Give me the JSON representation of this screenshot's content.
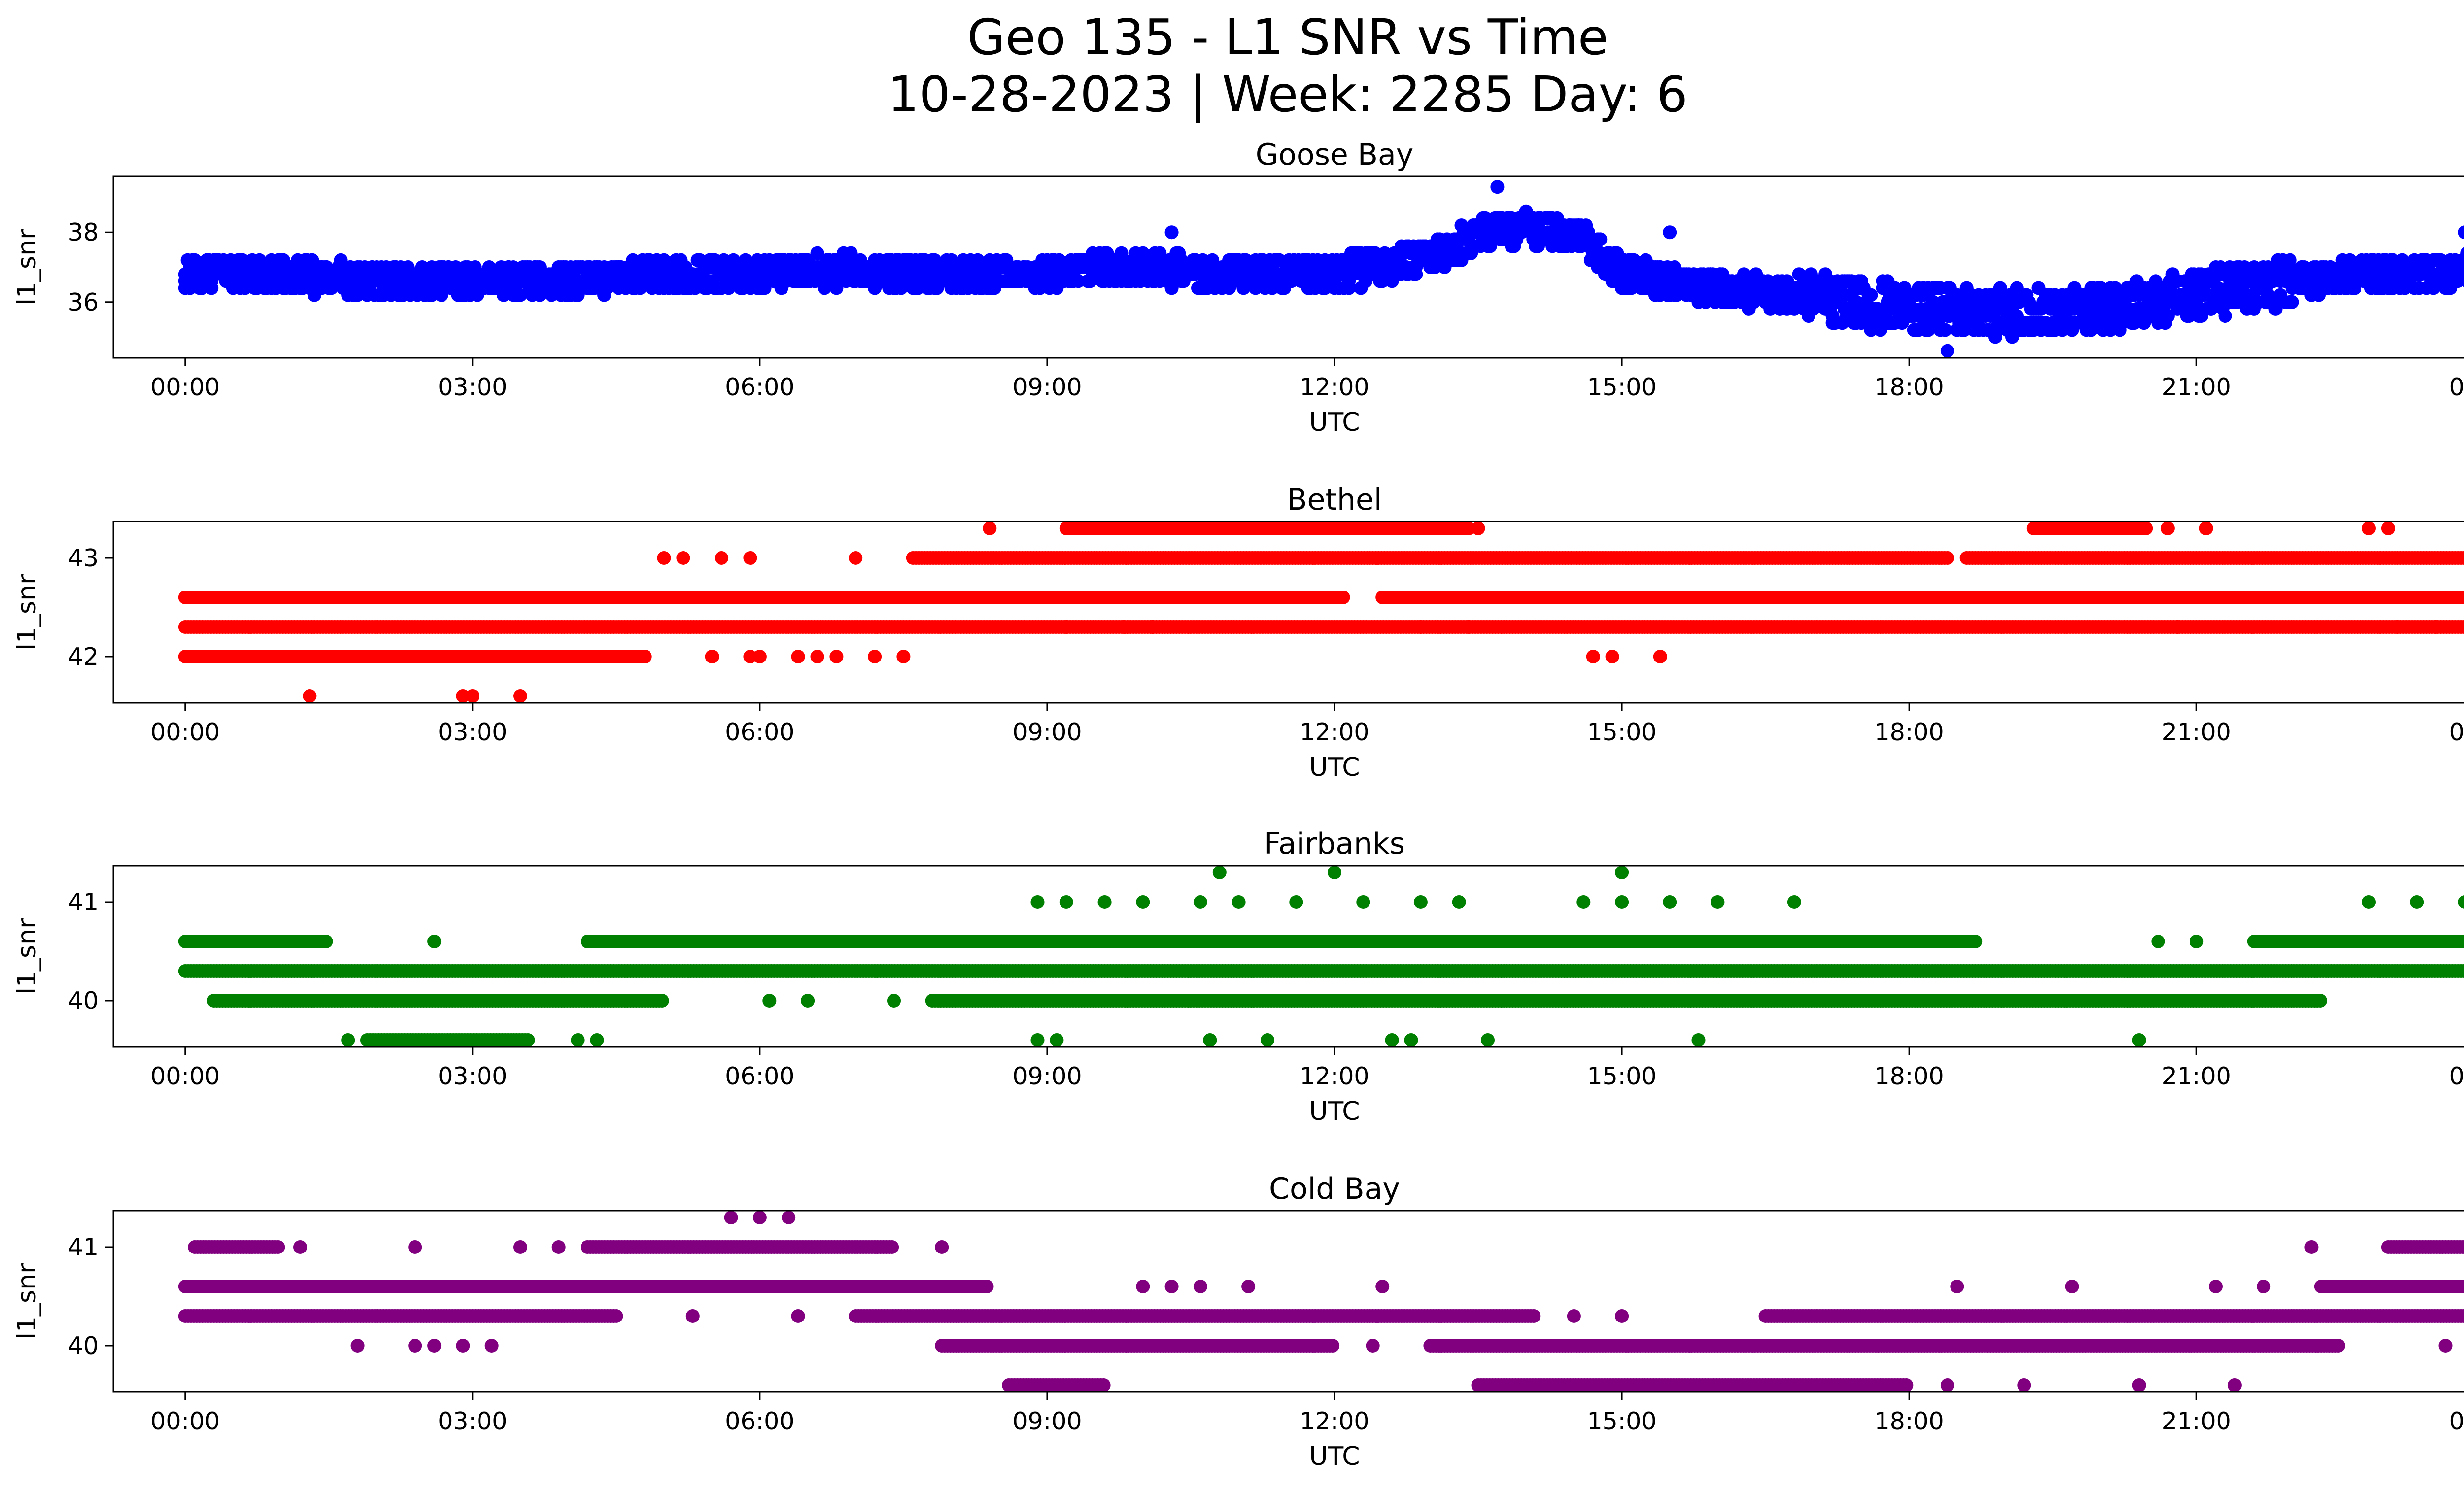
{
  "figure": {
    "title_line1": "Geo 135 - L1 SNR vs Time",
    "title_line2": "10-28-2023 | Week: 2285 Day: 6"
  },
  "chart_data": [
    {
      "type": "scatter",
      "title": "Goose Bay",
      "color": "#0000ff",
      "xlabel": "UTC",
      "ylabel": "l1_snr",
      "xlim": [
        "23:15",
        "24:45"
      ],
      "xticks": [
        "00:00",
        "03:00",
        "06:00",
        "09:00",
        "12:00",
        "15:00",
        "18:00",
        "21:00",
        "00:00"
      ],
      "ylim": [
        34.4,
        39.6
      ],
      "yticks": [
        36,
        38
      ],
      "grid": false,
      "series_trend": [
        [
          0,
          36.8
        ],
        [
          1,
          36.8
        ],
        [
          2,
          36.6
        ],
        [
          3,
          36.6
        ],
        [
          4,
          36.6
        ],
        [
          5,
          36.8
        ],
        [
          6,
          36.8
        ],
        [
          7,
          36.9
        ],
        [
          8,
          36.8
        ],
        [
          9,
          36.8
        ],
        [
          10,
          37.0
        ],
        [
          11,
          36.8
        ],
        [
          12,
          36.8
        ],
        [
          13,
          37.3
        ],
        [
          13.7,
          38.1
        ],
        [
          14.5,
          38.0
        ],
        [
          15,
          36.8
        ],
        [
          16,
          36.4
        ],
        [
          17,
          36.1
        ],
        [
          18,
          35.8
        ],
        [
          19,
          35.7
        ],
        [
          20,
          35.8
        ],
        [
          21,
          36.2
        ],
        [
          22,
          36.6
        ],
        [
          23,
          36.8
        ],
        [
          24,
          36.9
        ]
      ],
      "outliers": [
        [
          13.7,
          39.3
        ],
        [
          18.4,
          34.6
        ],
        [
          10.3,
          38.0
        ],
        [
          23.8,
          38.0
        ],
        [
          15.5,
          38.0
        ]
      ]
    },
    {
      "type": "scatter",
      "title": "Bethel",
      "color": "#ff0000",
      "xlabel": "UTC",
      "ylabel": "l1_snr",
      "xlim": [
        "23:15",
        "24:45"
      ],
      "xticks": [
        "00:00",
        "03:00",
        "06:00",
        "09:00",
        "12:00",
        "15:00",
        "18:00",
        "21:00",
        "00:00"
      ],
      "ylim": [
        41.53,
        43.37
      ],
      "yticks": [
        42,
        43
      ],
      "grid": false,
      "levels": [
        41.6,
        42.0,
        42.3,
        42.6,
        43.0,
        43.3
      ],
      "segments": [
        [
          42.3,
          0,
          24
        ],
        [
          42.6,
          0,
          12.1
        ],
        [
          42.6,
          12.5,
          24
        ],
        [
          42.0,
          0,
          4.8
        ],
        [
          43.0,
          7.6,
          18.4
        ],
        [
          43.0,
          18.6,
          24
        ],
        [
          43.3,
          9.2,
          13.4
        ],
        [
          43.3,
          19.3,
          20.5
        ]
      ],
      "sparse": [
        [
          41.6,
          1.3
        ],
        [
          41.6,
          2.9
        ],
        [
          41.6,
          3.0
        ],
        [
          41.6,
          3.5
        ],
        [
          42.0,
          5.5
        ],
        [
          42.0,
          5.9
        ],
        [
          42.0,
          6.0
        ],
        [
          42.0,
          6.4
        ],
        [
          42.0,
          6.6
        ],
        [
          42.0,
          6.8
        ],
        [
          42.0,
          7.2
        ],
        [
          42.0,
          7.5
        ],
        [
          42.0,
          14.7
        ],
        [
          42.0,
          14.9
        ],
        [
          42.0,
          15.4
        ],
        [
          43.0,
          5.0
        ],
        [
          43.0,
          5.2
        ],
        [
          43.0,
          5.6
        ],
        [
          43.0,
          5.9
        ],
        [
          43.0,
          7.0
        ],
        [
          43.3,
          8.4
        ],
        [
          43.3,
          13.5
        ],
        [
          43.3,
          20.7
        ],
        [
          43.3,
          21.1
        ],
        [
          43.3,
          22.8
        ],
        [
          43.3,
          23.0
        ],
        [
          42.3,
          9.2
        ],
        [
          42.3,
          9.8
        ],
        [
          42.3,
          10.1
        ],
        [
          42.3,
          12.9
        ],
        [
          42.3,
          13.4
        ],
        [
          42.3,
          20.8
        ],
        [
          42.3,
          23.1
        ],
        [
          42.3,
          23.5
        ]
      ]
    },
    {
      "type": "scatter",
      "title": "Fairbanks",
      "color": "#008000",
      "xlabel": "UTC",
      "ylabel": "l1_snr",
      "xlim": [
        "23:15",
        "24:45"
      ],
      "xticks": [
        "00:00",
        "03:00",
        "06:00",
        "09:00",
        "12:00",
        "15:00",
        "18:00",
        "21:00",
        "00:00"
      ],
      "ylim": [
        39.53,
        41.37
      ],
      "yticks": [
        40,
        41
      ],
      "grid": false,
      "levels": [
        39.6,
        40.0,
        40.3,
        40.6,
        41.0,
        41.3
      ],
      "segments": [
        [
          40.3,
          0,
          24
        ],
        [
          40.6,
          0,
          1.5
        ],
        [
          40.6,
          4.2,
          18.7
        ],
        [
          40.6,
          21.6,
          24
        ],
        [
          40.0,
          0.3,
          5.0
        ],
        [
          40.0,
          7.8,
          22.3
        ],
        [
          39.6,
          1.9,
          3.6
        ]
      ],
      "sparse": [
        [
          39.6,
          1.7
        ],
        [
          39.6,
          4.1
        ],
        [
          39.6,
          4.3
        ],
        [
          39.6,
          8.9
        ],
        [
          39.6,
          9.1
        ],
        [
          39.6,
          10.7
        ],
        [
          39.6,
          11.3
        ],
        [
          39.6,
          12.6
        ],
        [
          39.6,
          12.8
        ],
        [
          39.6,
          13.6
        ],
        [
          39.6,
          15.8
        ],
        [
          39.6,
          20.4
        ],
        [
          41.0,
          8.9
        ],
        [
          41.0,
          9.2
        ],
        [
          41.0,
          9.6
        ],
        [
          41.0,
          10.0
        ],
        [
          41.0,
          10.6
        ],
        [
          41.0,
          11.0
        ],
        [
          41.0,
          11.6
        ],
        [
          41.0,
          12.3
        ],
        [
          41.0,
          12.9
        ],
        [
          41.0,
          13.3
        ],
        [
          41.0,
          14.6
        ],
        [
          41.0,
          15.0
        ],
        [
          41.0,
          15.5
        ],
        [
          41.0,
          16.0
        ],
        [
          41.0,
          16.8
        ],
        [
          41.0,
          22.8
        ],
        [
          41.0,
          23.3
        ],
        [
          41.0,
          23.8
        ],
        [
          41.3,
          10.8
        ],
        [
          41.3,
          12.0
        ],
        [
          41.3,
          15.0
        ],
        [
          40.6,
          2.6
        ],
        [
          40.6,
          20.6
        ],
        [
          40.6,
          21.0
        ],
        [
          40.0,
          6.1
        ],
        [
          40.0,
          6.5
        ],
        [
          40.0,
          7.4
        ],
        [
          40.0,
          24.0
        ]
      ]
    },
    {
      "type": "scatter",
      "title": "Cold Bay",
      "color": "#800080",
      "xlabel": "UTC",
      "ylabel": "l1_snr",
      "xlim": [
        "23:15",
        "24:45"
      ],
      "xticks": [
        "00:00",
        "03:00",
        "06:00",
        "09:00",
        "12:00",
        "15:00",
        "18:00",
        "21:00",
        "00:00"
      ],
      "ylim": [
        39.53,
        41.37
      ],
      "yticks": [
        40,
        41
      ],
      "grid": false,
      "levels": [
        39.6,
        40.0,
        40.3,
        40.6,
        41.0,
        41.3
      ],
      "segments": [
        [
          40.6,
          0,
          8.4
        ],
        [
          40.6,
          22.3,
          24
        ],
        [
          40.3,
          0,
          4.5
        ],
        [
          40.3,
          7.0,
          14.1
        ],
        [
          40.3,
          16.5,
          24
        ],
        [
          41.0,
          4.2,
          7.4
        ],
        [
          40.0,
          7.9,
          12.0
        ],
        [
          40.0,
          13.0,
          22.5
        ],
        [
          39.6,
          13.5,
          18.0
        ],
        [
          39.6,
          8.6,
          9.6
        ],
        [
          41.0,
          0.1,
          1.0
        ],
        [
          41.0,
          23.0,
          24
        ]
      ],
      "sparse": [
        [
          40.0,
          1.8
        ],
        [
          40.0,
          2.4
        ],
        [
          40.0,
          2.6
        ],
        [
          40.0,
          2.9
        ],
        [
          40.0,
          3.2
        ],
        [
          40.0,
          12.4
        ],
        [
          40.0,
          23.6
        ],
        [
          41.0,
          1.2
        ],
        [
          41.0,
          2.4
        ],
        [
          41.0,
          3.5
        ],
        [
          41.0,
          3.9
        ],
        [
          41.0,
          7.9
        ],
        [
          41.0,
          22.2
        ],
        [
          41.3,
          5.7
        ],
        [
          41.3,
          6.0
        ],
        [
          41.3,
          6.3
        ],
        [
          40.6,
          10.0
        ],
        [
          40.6,
          10.3
        ],
        [
          40.6,
          10.6
        ],
        [
          40.6,
          11.1
        ],
        [
          40.6,
          12.5
        ],
        [
          40.6,
          18.5
        ],
        [
          40.6,
          19.7
        ],
        [
          40.6,
          21.2
        ],
        [
          40.6,
          21.7
        ],
        [
          40.3,
          5.3
        ],
        [
          40.3,
          6.4
        ],
        [
          40.3,
          14.5
        ],
        [
          40.3,
          15.0
        ],
        [
          39.6,
          18.4
        ],
        [
          39.6,
          19.2
        ],
        [
          39.6,
          20.4
        ],
        [
          39.6,
          21.4
        ]
      ]
    }
  ]
}
